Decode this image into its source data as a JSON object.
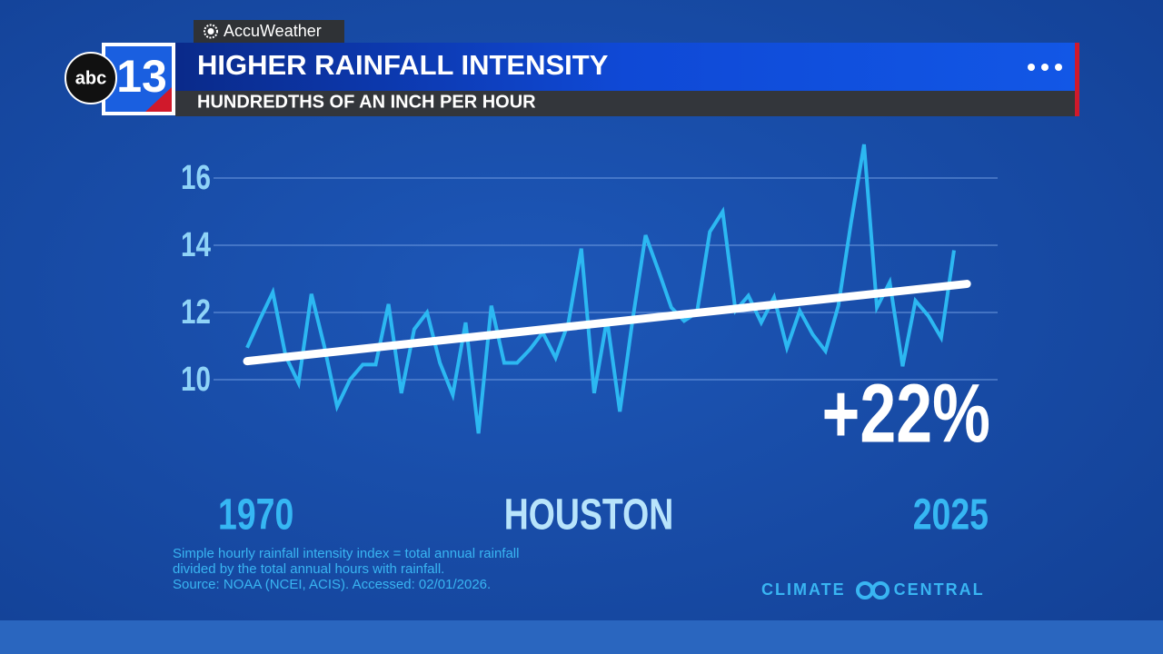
{
  "header": {
    "brand": "AccuWeather",
    "logo_text": "abc",
    "logo_number": "13"
  },
  "chart_data": {
    "type": "line",
    "title": "HIGHER RAINFALL INTENSITY",
    "subtitle": "HUNDREDTHS OF AN INCH PER HOUR",
    "location": "HOUSTON",
    "annotation": "+22%",
    "x": [
      1970,
      1971,
      1972,
      1973,
      1974,
      1975,
      1976,
      1977,
      1978,
      1979,
      1980,
      1981,
      1982,
      1983,
      1984,
      1985,
      1986,
      1987,
      1988,
      1989,
      1990,
      1991,
      1992,
      1993,
      1994,
      1995,
      1996,
      1997,
      1998,
      1999,
      2000,
      2001,
      2002,
      2003,
      2004,
      2005,
      2006,
      2007,
      2008,
      2009,
      2010,
      2011,
      2012,
      2013,
      2014,
      2015,
      2016,
      2017,
      2018,
      2019,
      2020,
      2021,
      2022,
      2023,
      2024,
      2025
    ],
    "values": [
      10.95,
      11.8,
      12.6,
      10.7,
      9.9,
      12.55,
      11.0,
      9.2,
      10.0,
      10.45,
      10.45,
      12.25,
      9.6,
      11.5,
      12.0,
      10.5,
      9.55,
      11.7,
      8.4,
      12.2,
      10.5,
      10.5,
      10.9,
      11.4,
      10.65,
      11.7,
      13.9,
      9.6,
      11.8,
      9.05,
      11.8,
      14.3,
      13.25,
      12.15,
      11.75,
      12.0,
      14.4,
      15.0,
      12.05,
      12.5,
      11.7,
      12.45,
      10.95,
      12.05,
      11.35,
      10.85,
      12.2,
      14.7,
      17.0,
      12.15,
      12.9,
      10.4,
      12.35,
      11.9,
      11.25,
      13.85
    ],
    "color": "#2cb8f2",
    "trend_x": [
      1970,
      2026
    ],
    "trend_values": [
      10.55,
      12.85
    ],
    "trend_color": "#ffffff",
    "xlim": [
      1970,
      2025
    ],
    "xticks": [
      1970,
      2025
    ],
    "ylim": [
      8,
      17.5
    ],
    "yticks": [
      10,
      12,
      14,
      16
    ],
    "grid": true,
    "notes": [
      "Simple hourly rainfall intensity index = total annual rainfall",
      "divided by the total annual hours with rainfall.",
      "Source: NOAA (NCEI, ACIS). Accessed: 02/01/2026."
    ],
    "credit": "CLIMATE CENTRAL"
  }
}
